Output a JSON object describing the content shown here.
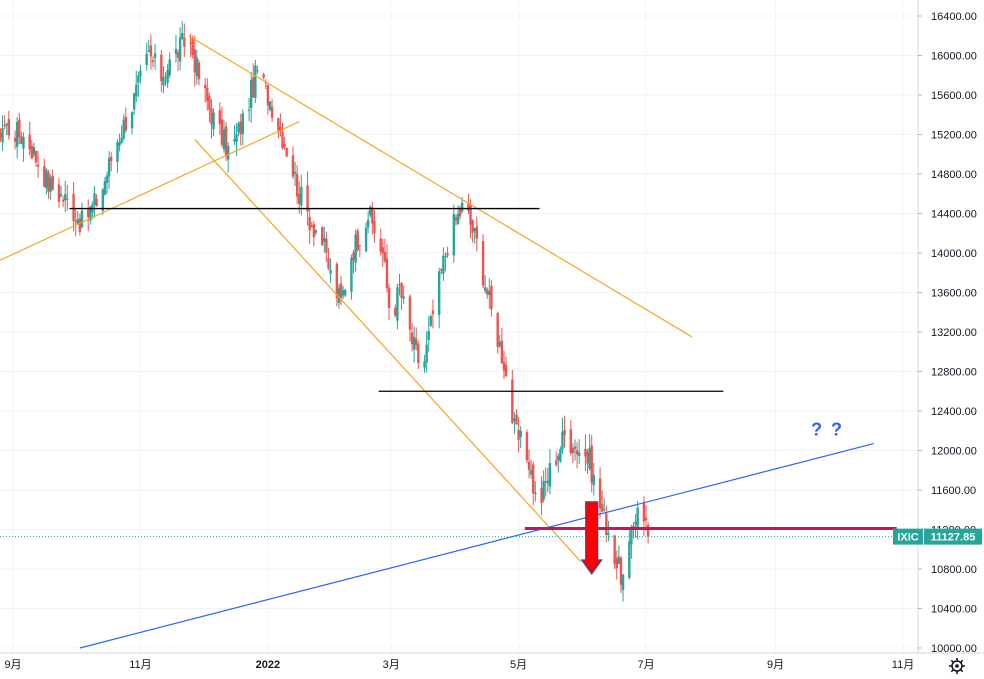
{
  "chart_data": {
    "type": "candlestick",
    "symbol": "IXIC",
    "last_price_label": "11127.85",
    "last_price": 11127.85,
    "ylim": [
      9950,
      16500
    ],
    "y_ticks": [
      {
        "v": 16400,
        "label": "16400.00"
      },
      {
        "v": 16000,
        "label": "16000.00"
      },
      {
        "v": 15600,
        "label": "15600.00"
      },
      {
        "v": 15200,
        "label": "15200.00"
      },
      {
        "v": 14800,
        "label": "14800.00"
      },
      {
        "v": 14400,
        "label": "14400.00"
      },
      {
        "v": 14000,
        "label": "14000.00"
      },
      {
        "v": 13600,
        "label": "13600.00"
      },
      {
        "v": 13200,
        "label": "13200.00"
      },
      {
        "v": 12800,
        "label": "12800.00"
      },
      {
        "v": 12400,
        "label": "12400.00"
      },
      {
        "v": 12000,
        "label": "12000.00"
      },
      {
        "v": 11600,
        "label": "11600.00"
      },
      {
        "v": 11200,
        "label": "11200.00"
      },
      {
        "v": 10800,
        "label": "10800.00"
      },
      {
        "v": 10400,
        "label": "10400.00"
      },
      {
        "v": 10000,
        "label": "10000.00"
      }
    ],
    "x_range_days": [
      0,
      440
    ],
    "x_ticks": [
      {
        "day": 13,
        "label": "9月",
        "major": false
      },
      {
        "day": 74,
        "label": "11月",
        "major": false
      },
      {
        "day": 135,
        "label": "2022",
        "major": true
      },
      {
        "day": 194,
        "label": "3月",
        "major": false
      },
      {
        "day": 255,
        "label": "5月",
        "major": false
      },
      {
        "day": 316,
        "label": "7月",
        "major": false
      },
      {
        "day": 378,
        "label": "9月",
        "major": false
      },
      {
        "day": 439,
        "label": "11月",
        "major": false
      }
    ],
    "key_points": [
      [
        0,
        14990
      ],
      [
        8,
        15300
      ],
      [
        20,
        15150
      ],
      [
        30,
        14700
      ],
      [
        40,
        14500
      ],
      [
        46,
        14300
      ],
      [
        55,
        14600
      ],
      [
        62,
        15100
      ],
      [
        70,
        15500
      ],
      [
        78,
        16000
      ],
      [
        84,
        15800
      ],
      [
        92,
        16050
      ],
      [
        97,
        16200
      ],
      [
        103,
        15700
      ],
      [
        110,
        15300
      ],
      [
        117,
        15000
      ],
      [
        124,
        15400
      ],
      [
        130,
        15850
      ],
      [
        137,
        15500
      ],
      [
        145,
        15000
      ],
      [
        150,
        14600
      ],
      [
        156,
        14300
      ],
      [
        160,
        14200
      ],
      [
        166,
        13700
      ],
      [
        170,
        13500
      ],
      [
        175,
        14000
      ],
      [
        183,
        14400
      ],
      [
        190,
        14000
      ],
      [
        194,
        13300
      ],
      [
        198,
        13650
      ],
      [
        204,
        13100
      ],
      [
        209,
        12800
      ],
      [
        215,
        13500
      ],
      [
        222,
        14200
      ],
      [
        229,
        14500
      ],
      [
        235,
        14100
      ],
      [
        242,
        13400
      ],
      [
        248,
        12900
      ],
      [
        253,
        12200
      ],
      [
        260,
        11900
      ],
      [
        264,
        11400
      ],
      [
        270,
        11800
      ],
      [
        277,
        12150
      ],
      [
        285,
        12000
      ],
      [
        289,
        11900
      ],
      [
        293,
        11500
      ],
      [
        298,
        11200
      ],
      [
        302,
        10850
      ],
      [
        305,
        10700
      ],
      [
        309,
        11100
      ],
      [
        313,
        11600
      ],
      [
        317,
        11128
      ]
    ],
    "horizontal_lines": [
      {
        "value": 14450,
        "from_day": 40,
        "to_day": 265,
        "color": "#000000"
      },
      {
        "value": 12600,
        "from_day": 188,
        "to_day": 353,
        "color": "#000000"
      },
      {
        "value": 11210,
        "from_day": 258,
        "to_day": 436,
        "color": "#c2185b"
      }
    ],
    "trend_lines": [
      {
        "from": [
          0,
          13860
        ],
        "to": [
          150,
          15330
        ],
        "color": "#f5a623"
      },
      {
        "from": [
          97,
          16200
        ],
        "to": [
          338,
          13150
        ],
        "color": "#f5a623"
      },
      {
        "from": [
          100,
          15150
        ],
        "to": [
          285,
          10870
        ],
        "color": "#f5a623"
      },
      {
        "from": [
          45,
          10000
        ],
        "to": [
          425,
          12070
        ],
        "color": "#2962ff"
      }
    ],
    "arrow": {
      "day": 290,
      "from_value": 11480,
      "to_value": 10750,
      "color": "#ff0000"
    },
    "annotation_text": "? ?",
    "annotation_anchor": [
      395,
      12150
    ],
    "colors": {
      "up": "#26a69a",
      "down": "#ef5350",
      "grid": "#f0f3fa",
      "axis_text": "#131722"
    }
  }
}
